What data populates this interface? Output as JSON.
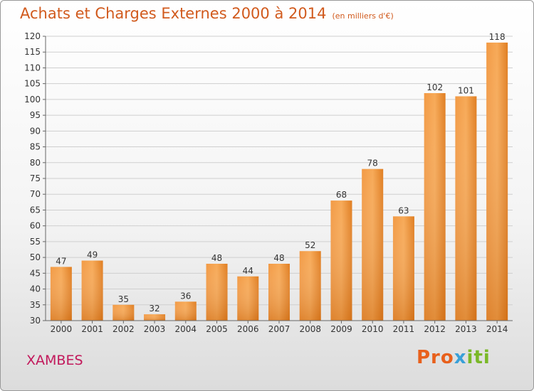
{
  "header": {
    "title": "Achats et Charges Externes 2000 à 2014",
    "subtitle": "(en milliers d'€)"
  },
  "footer": {
    "place": "XAMBES",
    "logo_text": "Proxiti"
  },
  "colors": {
    "title": "#d15a1d",
    "bar_light": "#f7a752",
    "bar_dark": "#d36b12",
    "place": "#c2185b"
  },
  "chart_data": {
    "type": "bar",
    "title": "Achats et Charges Externes 2000 à 2014",
    "categories": [
      "2000",
      "2001",
      "2002",
      "2003",
      "2004",
      "2005",
      "2006",
      "2007",
      "2008",
      "2009",
      "2010",
      "2011",
      "2012",
      "2013",
      "2014"
    ],
    "values": [
      47,
      49,
      35,
      32,
      36,
      48,
      44,
      48,
      52,
      68,
      78,
      63,
      102,
      101,
      118
    ],
    "ylim": [
      30,
      120
    ],
    "yticks": [
      30,
      35,
      40,
      45,
      50,
      55,
      60,
      65,
      70,
      75,
      80,
      85,
      90,
      95,
      100,
      105,
      110,
      115,
      120
    ],
    "grid": true,
    "data_labels": true
  }
}
